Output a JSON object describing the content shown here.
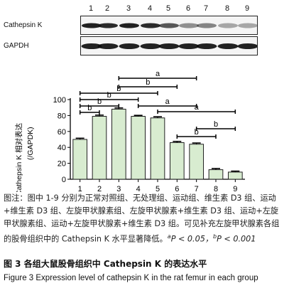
{
  "blot": {
    "lanes": [
      "1",
      "2",
      "3",
      "4",
      "5",
      "6",
      "7",
      "8",
      "9"
    ],
    "row_labels": [
      "Cathepsin K",
      "GAPDH"
    ]
  },
  "chart_data": {
    "type": "bar",
    "categories": [
      "1",
      "2",
      "3",
      "4",
      "5",
      "6",
      "7",
      "8",
      "9"
    ],
    "values": [
      50,
      79,
      88,
      79,
      77,
      46,
      44,
      12,
      9
    ],
    "errors": [
      1.5,
      1.5,
      1.5,
      1.2,
      1.5,
      1.5,
      1.5,
      1.5,
      1.2
    ],
    "ylabel": "Cathepsin K 相对表达",
    "ylabel2": "(/GAPDK)",
    "ylim": [
      0,
      100
    ],
    "yticks": [
      0,
      20,
      40,
      60,
      80,
      100
    ],
    "bar_color": "#d8ecd0",
    "significance": [
      {
        "from": 1,
        "to": 2,
        "label": "b"
      },
      {
        "from": 1,
        "to": 3,
        "label": "b"
      },
      {
        "from": 1,
        "to": 4,
        "label": "b"
      },
      {
        "from": 1,
        "to": 5,
        "label": "b"
      },
      {
        "from": 3,
        "to": 6,
        "label": "b"
      },
      {
        "from": 3,
        "to": 7,
        "label": "a"
      },
      {
        "from": 4,
        "to": 7,
        "label": "a"
      },
      {
        "from": 5,
        "to": 9,
        "label": "a"
      },
      {
        "from": 6,
        "to": 8,
        "label": "b"
      },
      {
        "from": 7,
        "to": 9,
        "label": "b"
      }
    ]
  },
  "caption": {
    "text": "图注：图中 1-9 分别为正常对照组、无处理组、运动组、维生素 D3 组、运动+维生素 D3 组、左旋甲状腺素组、左旋甲状腺素+维生素 D3 组、运动+左旋甲状腺素组、运动+左旋甲状腺素+维生素 D3 组。可见补充左旋甲状腺素各组的股骨组织中的 Cathepsin K 水平显著降低。",
    "sig_a_sup": "a",
    "sig_a_text": "P < 0.05，",
    "sig_b_sup": "b",
    "sig_b_text": "P < 0.001"
  },
  "figure_title_zh": "图 3   各组大鼠股骨组织中 Cathepsin K 的表达水平",
  "figure_title_en": "Figure 3   Expression level of cathepsin K in the rat femur in each group"
}
